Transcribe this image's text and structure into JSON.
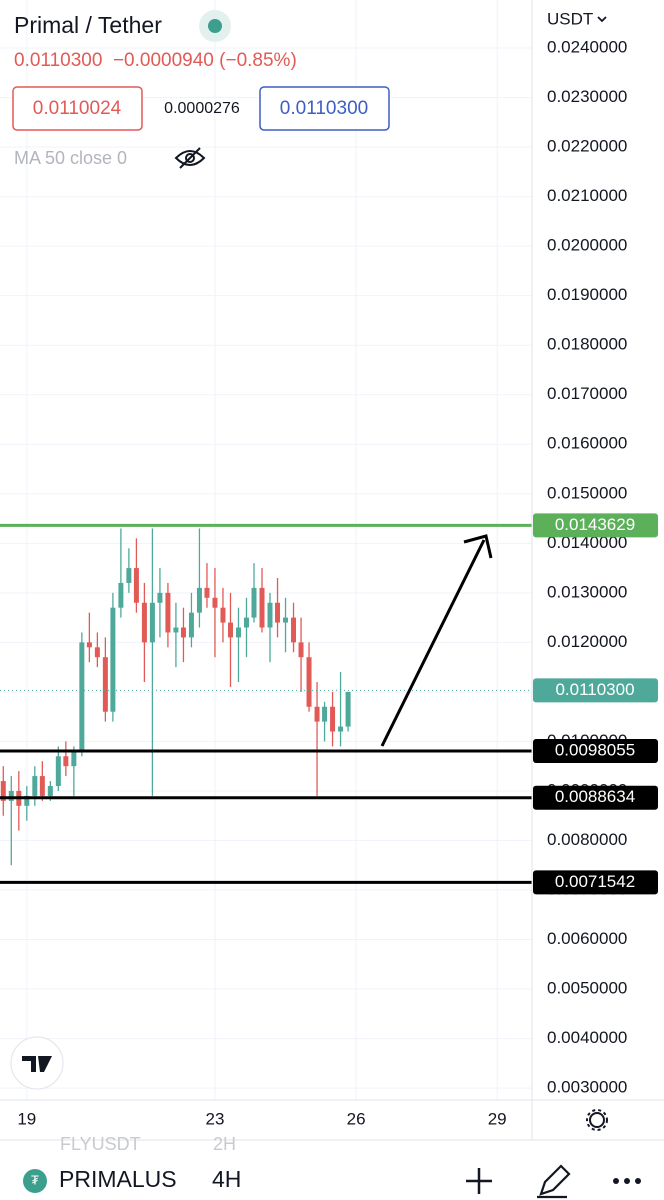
{
  "header": {
    "title": "Primal / Tether",
    "price_line": "0.0110300  −0.0000940 (−0.85%)",
    "bid": "0.0110024",
    "spread": "0.0000276",
    "ask": "0.0110300",
    "indicator": "MA 50 close 0",
    "currency": "USDT"
  },
  "toolbar": {
    "ghost_symbol": "FLYUSDT",
    "ghost_interval": "2H",
    "symbol": "PRIMALUS",
    "interval": "4H"
  },
  "chart_data": {
    "type": "candlestick",
    "x": [
      18.5,
      18.67,
      18.83,
      19,
      19.17,
      19.33,
      19.5,
      19.67,
      19.83,
      20,
      20.17,
      20.33,
      20.5,
      20.67,
      20.83,
      21,
      21.17,
      21.33,
      21.5,
      21.67,
      21.83,
      22,
      22.17,
      22.33,
      22.5,
      22.67,
      22.83,
      23,
      23.17,
      23.33,
      23.5,
      23.67,
      23.83,
      24,
      24.17,
      24.33,
      24.5,
      24.67,
      24.83,
      25,
      25.17,
      25.33,
      25.5,
      25.67,
      25.83
    ],
    "open": [
      0.0092,
      0.0088,
      0.009,
      0.0087,
      0.0089,
      0.0093,
      0.0089,
      0.0091,
      0.0097,
      0.0095,
      0.0098,
      0.012,
      0.0119,
      0.0117,
      0.0106,
      0.0127,
      0.0132,
      0.0135,
      0.0128,
      0.012,
      0.0128,
      0.013,
      0.0122,
      0.0123,
      0.0121,
      0.0126,
      0.0131,
      0.0129,
      0.0127,
      0.0124,
      0.0121,
      0.0123,
      0.0125,
      0.0131,
      0.0123,
      0.0128,
      0.0124,
      0.0125,
      0.012,
      0.0117,
      0.0107,
      0.0104,
      0.0107,
      0.0102,
      0.0103
    ],
    "high": [
      0.0095,
      0.0093,
      0.0094,
      0.0091,
      0.0095,
      0.0096,
      0.0092,
      0.0099,
      0.01,
      0.0099,
      0.0122,
      0.0126,
      0.0122,
      0.0121,
      0.013,
      0.0143,
      0.0139,
      0.0141,
      0.0132,
      0.0143,
      0.0135,
      0.0132,
      0.0128,
      0.0127,
      0.013,
      0.0143,
      0.0136,
      0.0135,
      0.0131,
      0.013,
      0.0127,
      0.0129,
      0.0136,
      0.0135,
      0.013,
      0.0133,
      0.0129,
      0.0128,
      0.0125,
      0.012,
      0.0112,
      0.0108,
      0.011,
      0.0114,
      0.011
    ],
    "low": [
      0.0085,
      0.0075,
      0.0082,
      0.0084,
      0.0087,
      0.0088,
      0.0088,
      0.009,
      0.0093,
      0.0089,
      0.0097,
      0.0116,
      0.0115,
      0.0104,
      0.0104,
      0.0125,
      0.013,
      0.0126,
      0.0112,
      0.0089,
      0.0121,
      0.0119,
      0.0115,
      0.0116,
      0.0119,
      0.0123,
      0.0127,
      0.0117,
      0.012,
      0.0111,
      0.0112,
      0.0117,
      0.0124,
      0.0122,
      0.0116,
      0.0121,
      0.0118,
      0.0118,
      0.011,
      0.0106,
      0.0089,
      0.01,
      0.0099,
      0.0099,
      0.0102
    ],
    "close": [
      0.0088,
      0.009,
      0.0087,
      0.0089,
      0.0093,
      0.0089,
      0.0091,
      0.0097,
      0.0095,
      0.0098,
      0.012,
      0.0119,
      0.0117,
      0.0106,
      0.0127,
      0.0132,
      0.0135,
      0.0128,
      0.012,
      0.0128,
      0.013,
      0.0122,
      0.0123,
      0.0121,
      0.0126,
      0.0131,
      0.0129,
      0.0127,
      0.0124,
      0.0121,
      0.0123,
      0.0125,
      0.0131,
      0.0123,
      0.0128,
      0.0124,
      0.0125,
      0.012,
      0.0117,
      0.0107,
      0.0104,
      0.0107,
      0.0102,
      0.0103,
      0.011
    ],
    "up_color": "#4fa99b",
    "down_color": "#e25a55",
    "xlim": [
      18.43,
      29.74
    ],
    "xticks": [
      19,
      23,
      26,
      29
    ],
    "ylim": [
      0.00276,
      0.02497
    ],
    "yticks": [
      {
        "value": 0.024,
        "label": "0.0240000"
      },
      {
        "value": 0.023,
        "label": "0.0230000"
      },
      {
        "value": 0.022,
        "label": "0.0220000"
      },
      {
        "value": 0.021,
        "label": "0.0210000"
      },
      {
        "value": 0.02,
        "label": "0.0200000"
      },
      {
        "value": 0.019,
        "label": "0.0190000"
      },
      {
        "value": 0.018,
        "label": "0.0180000"
      },
      {
        "value": 0.017,
        "label": "0.0170000"
      },
      {
        "value": 0.016,
        "label": "0.0160000"
      },
      {
        "value": 0.015,
        "label": "0.0150000"
      },
      {
        "value": 0.014,
        "label": "0.0140000"
      },
      {
        "value": 0.013,
        "label": "0.0130000"
      },
      {
        "value": 0.012,
        "label": "0.0120000"
      },
      {
        "value": 0.011,
        "label": "0.0110000"
      },
      {
        "value": 0.01,
        "label": "0.0100000"
      },
      {
        "value": 0.009,
        "label": "0.0090000"
      },
      {
        "value": 0.008,
        "label": "0.0080000"
      },
      {
        "value": 0.007,
        "label": "0.0070000"
      },
      {
        "value": 0.006,
        "label": "0.0060000"
      },
      {
        "value": 0.005,
        "label": "0.0050000"
      },
      {
        "value": 0.004,
        "label": "0.0040000"
      },
      {
        "value": 0.003,
        "label": "0.0030000"
      }
    ],
    "grid": true,
    "last_price": {
      "value": 0.01103,
      "label": "0.0110300",
      "color": "#4fa99b"
    },
    "levels": [
      {
        "value": 0.0143629,
        "color": "#5cb05a"
      },
      {
        "value": 0.0098055,
        "color": "#000000"
      },
      {
        "value": 0.0088634,
        "color": "#000000"
      },
      {
        "value": 0.0071542,
        "color": "#000000"
      }
    ]
  }
}
